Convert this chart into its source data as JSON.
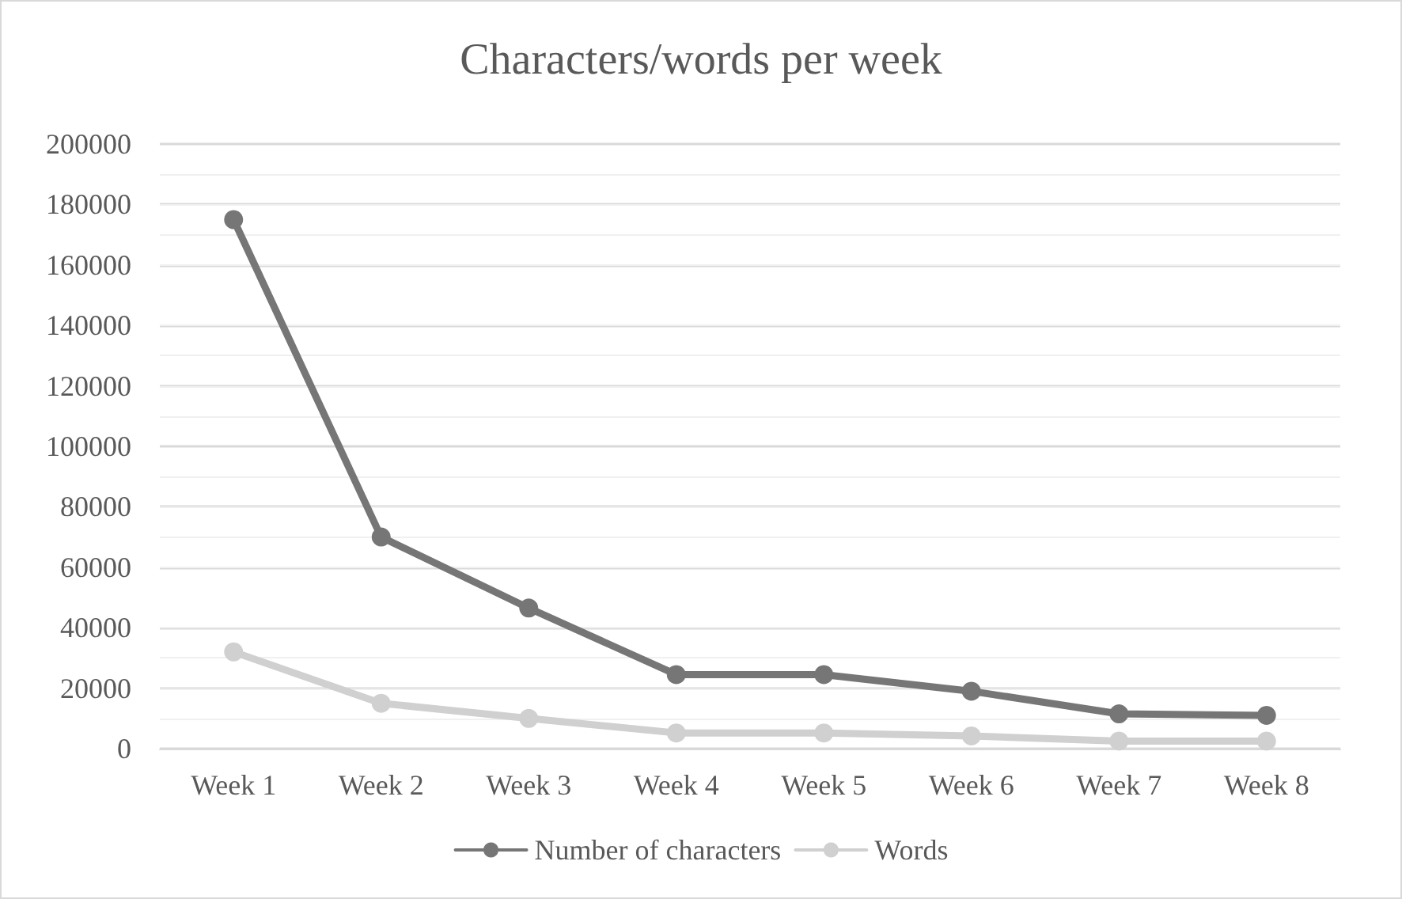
{
  "chart_data": {
    "type": "line",
    "title": "Characters/words per week",
    "categories": [
      "Week 1",
      "Week 2",
      "Week 3",
      "Week 4",
      "Week 5",
      "Week 6",
      "Week 7",
      "Week 8"
    ],
    "series": [
      {
        "name": "Number of characters",
        "color": "#767676",
        "values": [
          175000,
          70000,
          46500,
          24500,
          24500,
          19000,
          11500,
          11000
        ]
      },
      {
        "name": "Words",
        "color": "#d0d0d0",
        "values": [
          32000,
          15000,
          10000,
          5200,
          5200,
          4200,
          2500,
          2500
        ]
      }
    ],
    "ylim": [
      0,
      200000
    ],
    "yticks": [
      0,
      20000,
      40000,
      60000,
      80000,
      100000,
      120000,
      140000,
      160000,
      180000,
      200000
    ],
    "grid": "y",
    "legend": "bottom",
    "marker": "circle",
    "line_style": "solid"
  }
}
